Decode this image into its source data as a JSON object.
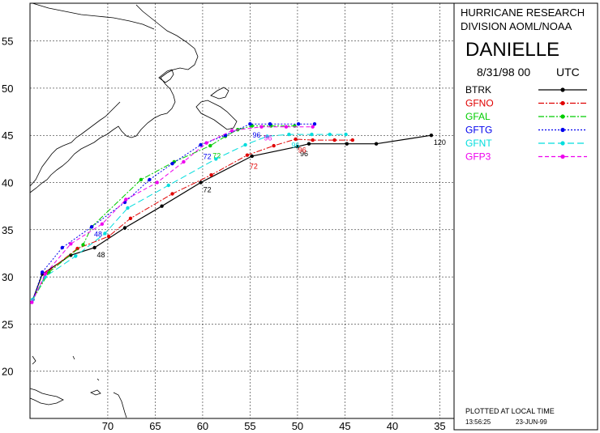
{
  "header": {
    "org_line1": "HURRICANE RESEARCH",
    "org_line2": "DIVISION AOML/NOAA",
    "storm_name": "DANIELLE",
    "init_time": "8/31/98 00",
    "init_tz": "UTC"
  },
  "footer": {
    "plotted_note": "PLOTTED AT LOCAL TIME",
    "clock": "13:56:25",
    "date": "23-JUN-99"
  },
  "legend": [
    {
      "name": "BTRK",
      "color": "#000000",
      "dash": ""
    },
    {
      "name": "GFNO",
      "color": "#e00000",
      "dash": "7,2,2,2"
    },
    {
      "name": "GFAL",
      "color": "#00cc00",
      "dash": "7,2,2,2"
    },
    {
      "name": "GFTG",
      "color": "#0000ee",
      "dash": "2,2"
    },
    {
      "name": "GFNT",
      "color": "#00dddd",
      "dash": "8,4"
    },
    {
      "name": "GFP3",
      "color": "#ee00ee",
      "dash": "5,3"
    }
  ],
  "axes": {
    "lon_labels": [
      "70",
      "65",
      "60",
      "55",
      "50",
      "45",
      "40",
      "35"
    ],
    "lat_labels": [
      "55",
      "50",
      "45",
      "40",
      "35",
      "30",
      "25",
      "20"
    ],
    "lon_range_west": [
      78.2,
      33.5
    ],
    "lat_range": [
      15,
      59
    ]
  },
  "chart_data": {
    "type": "line",
    "xlabel": "",
    "ylabel": "",
    "grid": true,
    "series": [
      {
        "name": "BTRK",
        "points": [
          [
            77.9,
            27.6
          ],
          [
            76.9,
            30.3
          ],
          [
            73.9,
            32.3
          ],
          [
            71.4,
            33.1
          ],
          [
            68.2,
            35.2
          ],
          [
            64.3,
            37.5
          ],
          [
            60.2,
            40.0
          ],
          [
            54.8,
            42.8
          ],
          [
            50.0,
            43.8
          ],
          [
            48.8,
            44.1
          ],
          [
            44.8,
            44.1
          ],
          [
            41.7,
            44.1
          ],
          [
            35.9,
            45.0
          ]
        ],
        "labels": [
          {
            "text": "48",
            "at": [
              71.4,
              33.1
            ]
          },
          {
            "text": "72",
            "at": [
              60.2,
              40.0
            ]
          },
          {
            "text": "96",
            "at": [
              50.0,
              43.8
            ]
          },
          {
            "text": "120",
            "at": [
              35.9,
              45.0
            ]
          }
        ]
      },
      {
        "name": "GFNO",
        "points": [
          [
            77.9,
            27.6
          ],
          [
            76.4,
            30.5
          ],
          [
            73.2,
            33.0
          ],
          [
            69.9,
            34.3
          ],
          [
            67.6,
            36.2
          ],
          [
            63.2,
            38.8
          ],
          [
            59.1,
            40.8
          ],
          [
            55.3,
            42.9
          ],
          [
            52.5,
            43.9
          ],
          [
            50.2,
            44.6
          ],
          [
            48.4,
            44.5
          ],
          [
            46.1,
            44.5
          ],
          [
            44.2,
            44.5
          ]
        ],
        "labels": [
          {
            "text": "72",
            "at": [
              55.3,
              42.5
            ]
          },
          {
            "text": "96",
            "at": [
              50.2,
              44.2
            ]
          }
        ]
      },
      {
        "name": "GFAL",
        "points": [
          [
            77.9,
            27.6
          ],
          [
            76.2,
            30.5
          ],
          [
            72.6,
            33.4
          ],
          [
            71.7,
            35.3
          ],
          [
            66.5,
            40.3
          ],
          [
            63.0,
            42.2
          ],
          [
            59.2,
            43.9
          ],
          [
            57.6,
            44.9
          ],
          [
            56.3,
            45.6
          ],
          [
            54.8,
            46.0
          ],
          [
            52.8,
            46.0
          ],
          [
            50.3,
            46.0
          ]
        ],
        "labels": [
          {
            "text": "72",
            "at": [
              59.2,
              43.6
            ]
          }
        ]
      },
      {
        "name": "GFTG",
        "points": [
          [
            77.9,
            27.6
          ],
          [
            76.9,
            30.5
          ],
          [
            74.8,
            33.1
          ],
          [
            71.7,
            35.3
          ],
          [
            68.2,
            37.9
          ],
          [
            65.6,
            40.3
          ],
          [
            63.2,
            42.0
          ],
          [
            60.2,
            44.0
          ],
          [
            57.6,
            45.0
          ],
          [
            55.0,
            46.2
          ],
          [
            52.9,
            46.2
          ],
          [
            49.9,
            46.2
          ],
          [
            48.2,
            46.2
          ]
        ],
        "labels": [
          {
            "text": "48",
            "at": [
              71.7,
              35.3
            ]
          },
          {
            "text": "72",
            "at": [
              60.2,
              43.5
            ]
          },
          {
            "text": "96",
            "at": [
              55.0,
              45.8
            ]
          }
        ]
      },
      {
        "name": "GFNT",
        "points": [
          [
            77.9,
            27.6
          ],
          [
            76.6,
            30.0
          ],
          [
            73.4,
            32.2
          ],
          [
            70.3,
            34.6
          ],
          [
            67.9,
            37.3
          ],
          [
            63.6,
            39.7
          ],
          [
            58.6,
            42.5
          ],
          [
            55.5,
            44.0
          ],
          [
            53.2,
            44.9
          ],
          [
            50.9,
            45.1
          ],
          [
            48.5,
            45.1
          ],
          [
            46.6,
            45.1
          ],
          [
            44.9,
            45.1
          ]
        ],
        "labels": [
          {
            "text": "96",
            "at": [
              50.9,
              44.7
            ]
          }
        ]
      },
      {
        "name": "GFP3",
        "points": [
          [
            78.0,
            27.3
          ],
          [
            76.6,
            30.3
          ],
          [
            73.9,
            33.5
          ],
          [
            70.6,
            35.6
          ],
          [
            68.1,
            38.2
          ],
          [
            64.8,
            40.0
          ],
          [
            62.0,
            42.2
          ],
          [
            59.6,
            44.2
          ],
          [
            56.9,
            45.5
          ],
          [
            53.8,
            45.9
          ],
          [
            51.2,
            45.9
          ],
          [
            48.4,
            45.9
          ]
        ],
        "labels": [
          {
            "text": "96",
            "at": [
              53.8,
              45.5
            ]
          }
        ]
      }
    ]
  }
}
